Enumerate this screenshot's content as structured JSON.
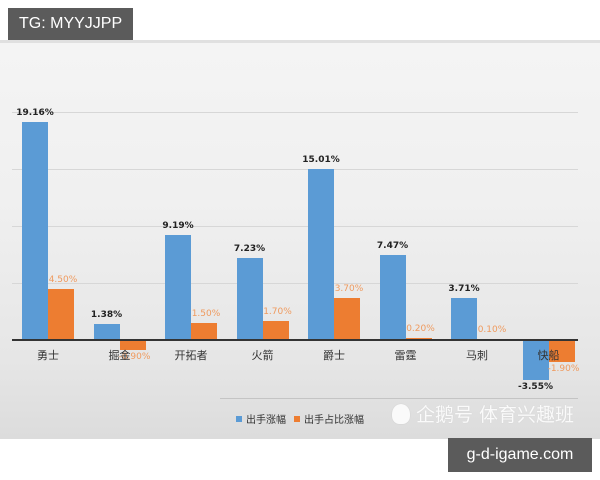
{
  "tags": {
    "top_left": "TG: MYYJJPP",
    "bottom_right": "g-d-igame.com"
  },
  "legend": {
    "series_1": "出手涨幅",
    "series_2": "出手占比涨幅"
  },
  "watermark": "企鹅号 体育兴趣班",
  "colors": {
    "series_1": "#5b9bd5",
    "series_2": "#ed7d31"
  },
  "labels": {
    "s1": [
      "19.16%",
      "1.38%",
      "9.19%",
      "7.23%",
      "15.01%",
      "7.47%",
      "3.71%",
      "-3.55%"
    ],
    "s2": [
      "4.50%",
      "-0.90%",
      "1.50%",
      "1.70%",
      "3.70%",
      "0.20%",
      "0.10%",
      "-1.90%"
    ]
  },
  "categories": [
    "勇士",
    "掘金",
    "开拓者",
    "火箭",
    "爵士",
    "雷霆",
    "马刺",
    "快船"
  ],
  "chart_data": {
    "type": "bar",
    "title": "",
    "xlabel": "",
    "ylabel": "",
    "categories": [
      "勇士",
      "掘金",
      "开拓者",
      "火箭",
      "爵士",
      "雷霆",
      "马刺",
      "快船"
    ],
    "series": [
      {
        "name": "出手涨幅",
        "color": "#5b9bd5",
        "values": [
          19.16,
          1.38,
          9.19,
          7.23,
          15.01,
          7.47,
          3.71,
          -3.55
        ]
      },
      {
        "name": "出手占比涨幅",
        "color": "#ed7d31",
        "values": [
          4.5,
          -0.9,
          1.5,
          1.7,
          3.7,
          0.2,
          0.1,
          -1.9
        ]
      }
    ],
    "ylim": [
      -5,
      20
    ],
    "grid": true,
    "gridlines_at": [
      5,
      10,
      15,
      20
    ],
    "legend_position": "bottom",
    "data_labels": true
  }
}
